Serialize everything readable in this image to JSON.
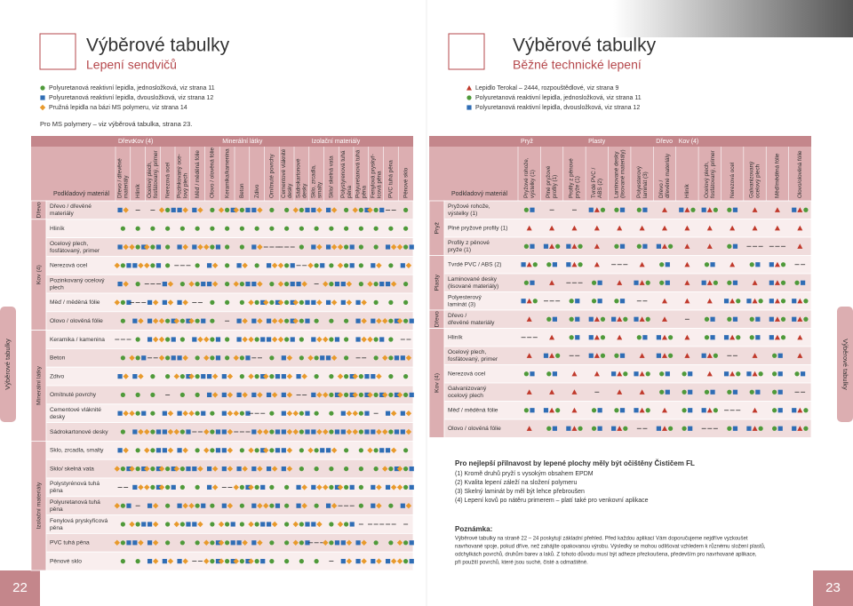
{
  "left": {
    "title": "Výběrové tabulky",
    "subtitle": "Lepení sendvičů",
    "legend": [
      "Polyuretanová reaktivní lepidla, jednosložková, viz strana 11",
      "Polyuretanová reaktivní lepidla, dvousložková, viz strana 12",
      "Pružná lepidla na bázi MS polymeru, viz strana 14"
    ],
    "note": "Pro MS polymery – viz výběrová tabulka, strana 23.",
    "table": {
      "header_label": "Podkladový materiál",
      "column_groups": [
        {
          "label": "Dřevo",
          "columns": [
            [
              "Dřevo / dřevěné",
              "materiály"
            ]
          ]
        },
        {
          "label": "Kov (4)",
          "columns": [
            [
              "Hliník"
            ],
            [
              "Ocelový plech,",
              "fosfátovaný, primer"
            ],
            [
              "Nerezová ocel"
            ],
            [
              "Pozinkovaný oce-",
              "lový plech"
            ],
            [
              "Měď / měděná fólie"
            ],
            [
              "Olovo / olověná fólie"
            ]
          ]
        },
        {
          "label": "Minerální látky",
          "columns": [
            [
              "Keramika/kamenina"
            ],
            [
              "Beton"
            ],
            [
              "Zdivo"
            ],
            [
              "Omítnuté povrchy"
            ],
            [
              "Cementové vláknité",
              "desky"
            ],
            [
              "Sádrokartonové",
              "desky"
            ]
          ]
        },
        {
          "label": "Izolační materiály",
          "columns": [
            [
              "Sklo, zrcadla,",
              "smalty"
            ],
            [
              "Sklo/ skelná vata"
            ],
            [
              "Polystyrenová tuhá",
              "pěna"
            ],
            [
              "Polyuretanová tuhá",
              "pěna"
            ],
            [
              "Fenylová pryskyř-",
              "icová pěna"
            ],
            [
              "PVC tuhá pěna"
            ],
            [
              "Pěnové sklo"
            ]
          ]
        }
      ],
      "row_groups": [
        {
          "label": "Dřevo",
          "rows": [
            [
              "Dřevo / dřevěné",
              "materiály"
            ]
          ]
        },
        {
          "label": "Kov (4)",
          "rows": [
            [
              "Hliník"
            ],
            [
              "Ocelový plech,",
              "fosfátovaný, primer"
            ],
            [
              "Nerezová ocel"
            ],
            [
              "Pozinkovaný ocelový",
              "plech"
            ],
            [
              "Měď / měděná fólie"
            ],
            [
              "Olovo / olověná fólie"
            ]
          ]
        },
        {
          "label": "Minerální látky",
          "rows": [
            [
              "Keramika / kamenina"
            ],
            [
              "Beton"
            ],
            [
              "Zdivo"
            ],
            [
              "Omítnuté povrchy"
            ],
            [
              "Cementové vláknité",
              "desky"
            ],
            [
              "Sádrokartonové desky"
            ]
          ]
        },
        {
          "label": "Izolační materiály",
          "rows": [
            [
              "Sklo, zrcadla, smalty"
            ],
            [
              "Sklo/ skelná vata"
            ],
            [
              "Polystyrénová tuhá",
              "pěna"
            ],
            [
              "Polyuretanová tuhá",
              "pěna"
            ],
            [
              "Fenylová pryskyřicová",
              "pěna"
            ],
            [
              "PVC tuhá pěna"
            ],
            [
              "Pěnové sklo"
            ]
          ]
        }
      ]
    },
    "side_tab": "Výběrové tabulky",
    "page_number": "22"
  },
  "right": {
    "title": "Výběrové tabulky",
    "subtitle": "Běžné technické lepení",
    "legend": [
      "Lepidlo Terokal – 2444, rozpouštědlové, viz strana 9",
      "Polyuretanová reaktivní lepidla, jednosložková, viz strana 11",
      "Polyuretanová reaktivní lepidla, dvousložková, viz strana 12"
    ],
    "table": {
      "header_label": "Podkladový materiál",
      "column_groups": [
        {
          "label": "Pryž",
          "columns": [
            [
              "Pryžové rohože,",
              "výstelky (1)"
            ],
            [
              "Plné pryžové",
              "profily (1)"
            ],
            [
              "Profily z pěnové",
              "pryže (1)"
            ]
          ]
        },
        {
          "label": "Plasty",
          "columns": [
            [
              "Tvrdé PVC /",
              "ABS (2)"
            ],
            [
              "Laminované desky",
              "(lisované materiály)"
            ],
            [
              "Polyesterový",
              "laminát (3)"
            ]
          ]
        },
        {
          "label": "Dřevo",
          "columns": [
            [
              "Dřevo /",
              "dřevěné materiály"
            ]
          ]
        },
        {
          "label": "Kov (4)",
          "columns": [
            [
              "Hliník"
            ],
            [
              "Ocelový plech,",
              "fosfátovaný, primer"
            ],
            [
              "Nerezová ocel"
            ],
            [
              "Galvanizovaný",
              "ocelový plech"
            ],
            [
              "Měď/měděná fólie"
            ],
            [
              "Olovo/olověná fólie"
            ]
          ]
        }
      ],
      "row_groups": [
        {
          "label": "Pryž",
          "rows": [
            [
              "Pryžové rohože,",
              "výstelky (1)"
            ],
            [
              "Plné pryžové profily (1)"
            ],
            [
              "Profily z pěnové",
              "pryže (1)"
            ]
          ]
        },
        {
          "label": "Plasty",
          "rows": [
            [
              "Tvrdé PVC / ABS  (2)"
            ],
            [
              "Laminované desky",
              "(lisované materiály)"
            ],
            [
              "Polyesterový",
              "laminát (3)"
            ]
          ]
        },
        {
          "label": "Dřevo",
          "rows": [
            [
              "Dřevo /",
              "dřevěné materiály"
            ]
          ]
        },
        {
          "label": "Kov (4)",
          "rows": [
            [
              "Hliník"
            ],
            [
              "Ocelový plech,",
              "fosfátovaný, primer"
            ],
            [
              "Nerezová ocel"
            ],
            [
              "Galvanizovaný",
              "ocelový plech"
            ],
            [
              "Měď / měděná fólie"
            ],
            [
              "Olovo / olověná fólie"
            ]
          ]
        }
      ]
    },
    "info": {
      "heading": "Pro nejlepší přilnavost by lepené plochy měly být očištěny Čističem FL",
      "items": [
        "(1) Kromě druhů pryží s vysokým obsahem EPDM",
        "(2) Kvalita lepení záleží na složení polymeru",
        "(3) Skelný laminát by  měl být lehce přebroušen",
        "(4) Lepení kovů po nátěru primerem – platí také pro venkovní aplikace"
      ],
      "note_title": "Poznámka:",
      "note_lines": [
        "Výběrové tabulky na straně 22 – 24 poskytují základní přehled. Před každou aplikací Vám doporučujeme nejdříve vyzkoušet",
        "navrhované spoje, pokud dříve, než zahájíte opakovanou výrobu. Výsledky se mohou odlišovat vzhledem k různému složení plastů,",
        "odchylkách povrchů, druhům barev a laků. Z tohoto důvodu musí být adheze přezkoušena, především pro navrhované aplikace,",
        "při použití povrchů, které jsou suché, čisté a odmaštěné."
      ]
    },
    "side_tab": "Výběrové tabulky",
    "page_number": "23"
  }
}
